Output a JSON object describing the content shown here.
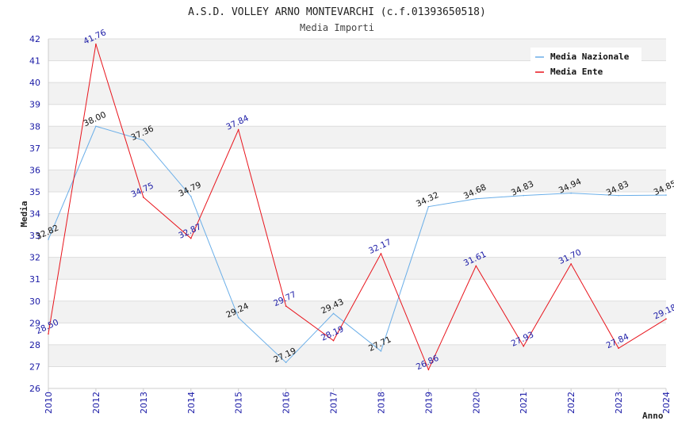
{
  "chart_data": {
    "type": "line",
    "title": "A.S.D. VOLLEY ARNO MONTEVARCHI (c.f.01393650518)",
    "subtitle": "Media Importi",
    "xlabel": "Anno",
    "ylabel": "Media",
    "ylim": [
      26,
      42
    ],
    "yticks": [
      "26",
      "27",
      "28",
      "29",
      "30",
      "31",
      "32",
      "33",
      "34",
      "35",
      "36",
      "37",
      "38",
      "39",
      "40",
      "41",
      "42"
    ],
    "categories": [
      "2010",
      "2012",
      "2013",
      "2014",
      "2015",
      "2016",
      "2017",
      "2018",
      "2019",
      "2020",
      "2021",
      "2022",
      "2023",
      "2024"
    ],
    "legend_position": "top-right",
    "series": [
      {
        "name": "Media Nazionale",
        "color": "#6aaee8",
        "values": [
          32.82,
          38.0,
          37.36,
          34.79,
          29.24,
          27.19,
          29.43,
          27.71,
          34.32,
          34.68,
          34.83,
          34.94,
          34.83,
          34.85
        ],
        "labels": [
          "32.82",
          "38.00",
          "37.36",
          "34.79",
          "29.24",
          "27.19",
          "29.43",
          "27.71",
          "34.32",
          "34.68",
          "34.83",
          "34.94",
          "34.83",
          "34.85"
        ]
      },
      {
        "name": "Media Ente",
        "color": "#e8141c",
        "values": [
          28.5,
          41.76,
          34.75,
          32.87,
          37.84,
          29.77,
          28.19,
          32.17,
          26.86,
          31.61,
          27.93,
          31.7,
          27.84,
          29.18
        ],
        "labels": [
          "28.50",
          "41.76",
          "34.75",
          "32.87",
          "37.84",
          "29.77",
          "28.19",
          "32.17",
          "26.86",
          "31.61",
          "27.93",
          "31.70",
          "27.84",
          "29.18"
        ]
      }
    ]
  }
}
